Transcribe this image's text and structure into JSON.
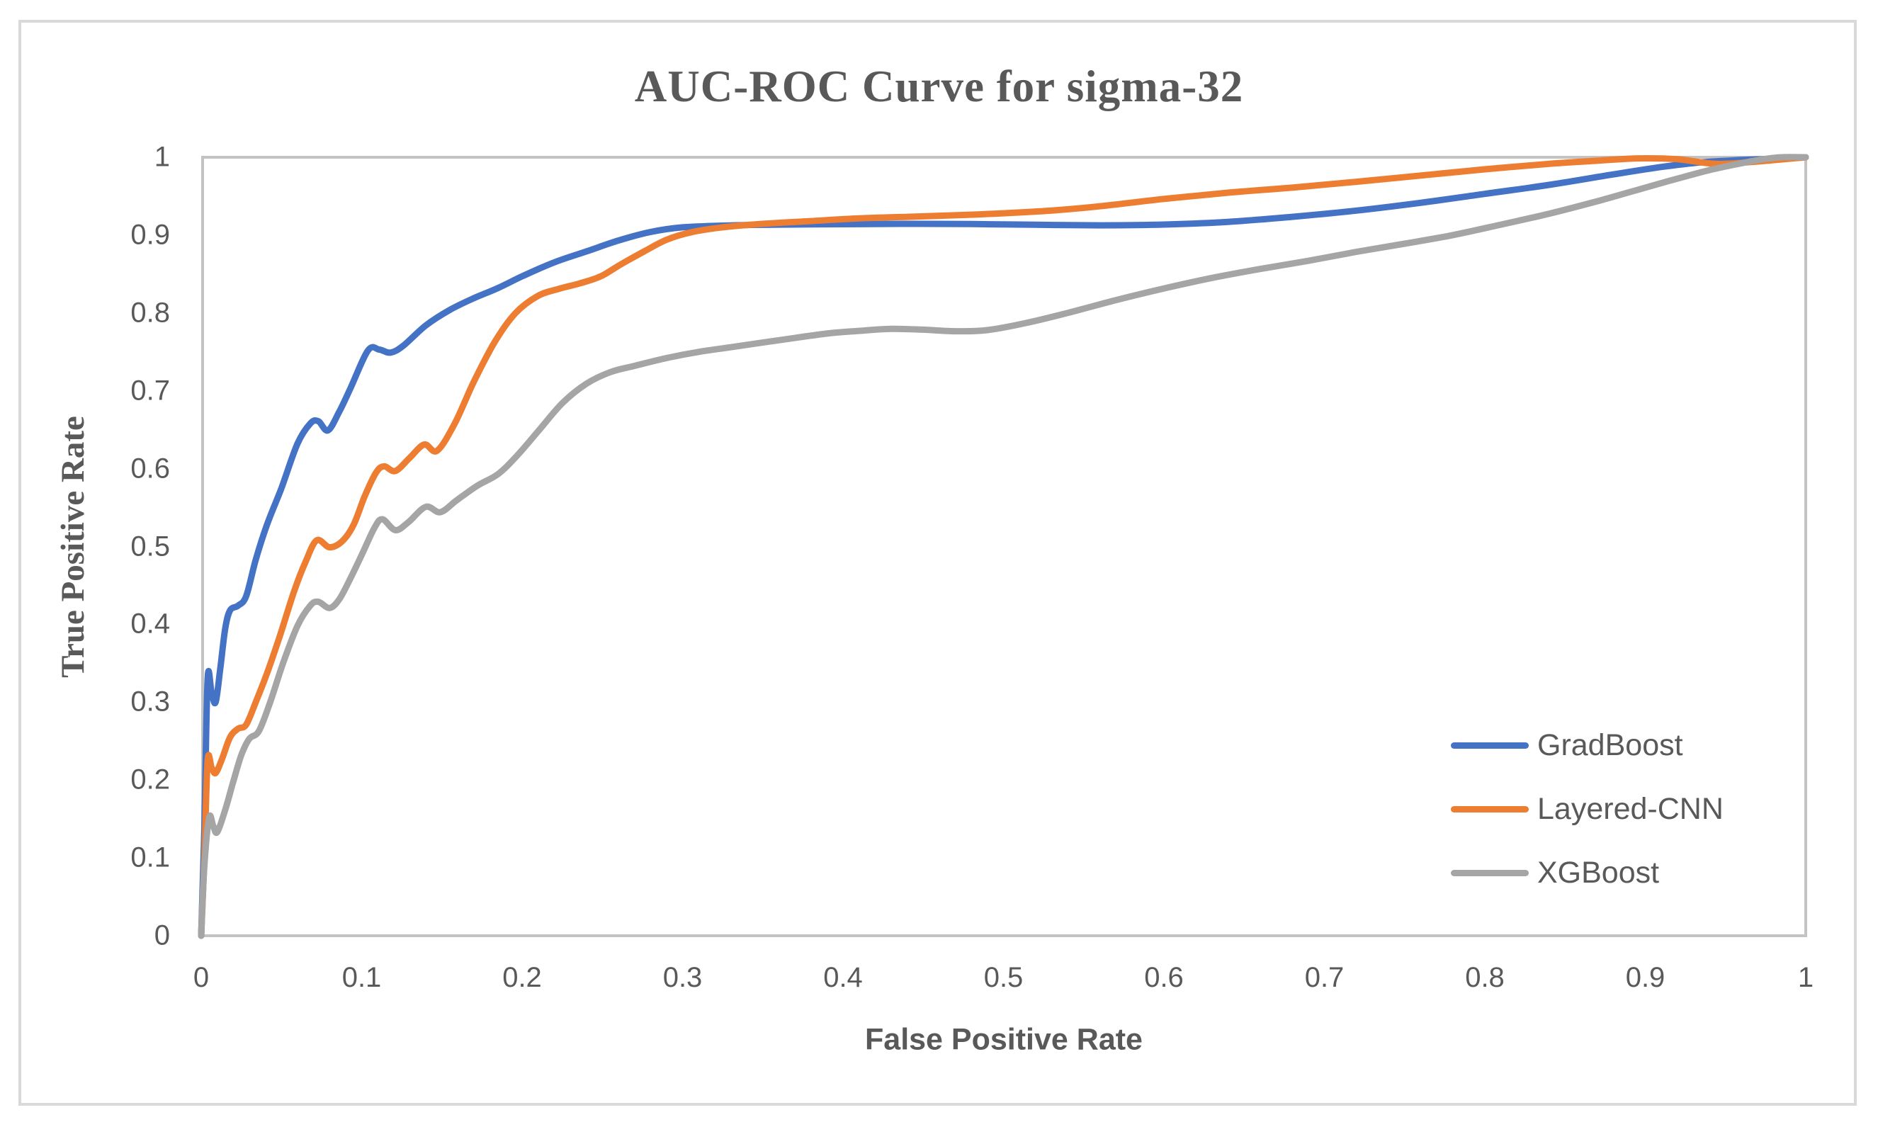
{
  "title": "AUC-ROC Curve for sigma-32",
  "axes": {
    "x_title": "False Positive Rate",
    "y_title": "True Positive Rate"
  },
  "legend": {
    "items": [
      {
        "label": "GradBoost",
        "color": "#4472c4"
      },
      {
        "label": "Layered-CNN",
        "color": "#ed7d31"
      },
      {
        "label": "XGBoost",
        "color": "#a5a5a5"
      }
    ]
  },
  "colors": {
    "text": "#595959",
    "axis_border": "#c3c3c3",
    "outer_frame": "#d9d9d9",
    "background": "#ffffff"
  },
  "chart_data": {
    "type": "line",
    "title": "AUC-ROC Curve for sigma-32",
    "xlabel": "False Positive Rate",
    "ylabel": "True Positive Rate",
    "xlim": [
      0,
      1
    ],
    "ylim": [
      0,
      1
    ],
    "grid": false,
    "legend_position": "inside-right",
    "x_ticks": [
      "0",
      "0.1",
      "0.2",
      "0.3",
      "0.4",
      "0.5",
      "0.6",
      "0.7",
      "0.8",
      "0.9",
      "1"
    ],
    "y_ticks": [
      "0",
      "0.1",
      "0.2",
      "0.3",
      "0.4",
      "0.5",
      "0.6",
      "0.7",
      "0.8",
      "0.9",
      "1"
    ],
    "series": [
      {
        "name": "GradBoost",
        "color": "#4472c4",
        "points": [
          [
            0,
            0
          ],
          [
            0.002,
            0.14
          ],
          [
            0.004,
            0.33
          ],
          [
            0.0065,
            0.312
          ],
          [
            0.009,
            0.3
          ],
          [
            0.012,
            0.345
          ],
          [
            0.015,
            0.395
          ],
          [
            0.018,
            0.418
          ],
          [
            0.023,
            0.424
          ],
          [
            0.028,
            0.436
          ],
          [
            0.034,
            0.483
          ],
          [
            0.041,
            0.528
          ],
          [
            0.05,
            0.575
          ],
          [
            0.06,
            0.632
          ],
          [
            0.068,
            0.658
          ],
          [
            0.073,
            0.661
          ],
          [
            0.079,
            0.649
          ],
          [
            0.086,
            0.673
          ],
          [
            0.093,
            0.703
          ],
          [
            0.104,
            0.752
          ],
          [
            0.111,
            0.753
          ],
          [
            0.118,
            0.749
          ],
          [
            0.126,
            0.758
          ],
          [
            0.14,
            0.784
          ],
          [
            0.155,
            0.804
          ],
          [
            0.17,
            0.819
          ],
          [
            0.185,
            0.832
          ],
          [
            0.2,
            0.847
          ],
          [
            0.22,
            0.865
          ],
          [
            0.24,
            0.879
          ],
          [
            0.26,
            0.893
          ],
          [
            0.28,
            0.904
          ],
          [
            0.3,
            0.91
          ],
          [
            0.33,
            0.9125
          ],
          [
            0.36,
            0.9135
          ],
          [
            0.4,
            0.914
          ],
          [
            0.44,
            0.9145
          ],
          [
            0.48,
            0.9142
          ],
          [
            0.52,
            0.9133
          ],
          [
            0.56,
            0.9126
          ],
          [
            0.6,
            0.9136
          ],
          [
            0.64,
            0.917
          ],
          [
            0.68,
            0.9235
          ],
          [
            0.72,
            0.9315
          ],
          [
            0.76,
            0.9415
          ],
          [
            0.8,
            0.953
          ],
          [
            0.84,
            0.9645
          ],
          [
            0.88,
            0.978
          ],
          [
            0.91,
            0.9875
          ],
          [
            0.935,
            0.9935
          ],
          [
            0.96,
            0.9965
          ],
          [
            0.98,
            0.998
          ],
          [
            1,
            1
          ]
        ]
      },
      {
        "name": "Layered-CNN",
        "color": "#ed7d31",
        "points": [
          [
            0,
            0
          ],
          [
            0.002,
            0.1
          ],
          [
            0.004,
            0.225
          ],
          [
            0.0065,
            0.216
          ],
          [
            0.009,
            0.209
          ],
          [
            0.013,
            0.227
          ],
          [
            0.018,
            0.255
          ],
          [
            0.023,
            0.266
          ],
          [
            0.028,
            0.271
          ],
          [
            0.034,
            0.3
          ],
          [
            0.041,
            0.337
          ],
          [
            0.049,
            0.385
          ],
          [
            0.058,
            0.443
          ],
          [
            0.065,
            0.48
          ],
          [
            0.072,
            0.508
          ],
          [
            0.08,
            0.499
          ],
          [
            0.088,
            0.507
          ],
          [
            0.095,
            0.528
          ],
          [
            0.102,
            0.565
          ],
          [
            0.109,
            0.595
          ],
          [
            0.114,
            0.603
          ],
          [
            0.121,
            0.597
          ],
          [
            0.13,
            0.614
          ],
          [
            0.139,
            0.631
          ],
          [
            0.147,
            0.623
          ],
          [
            0.158,
            0.658
          ],
          [
            0.17,
            0.712
          ],
          [
            0.183,
            0.763
          ],
          [
            0.196,
            0.8
          ],
          [
            0.21,
            0.822
          ],
          [
            0.223,
            0.831
          ],
          [
            0.236,
            0.838
          ],
          [
            0.249,
            0.847
          ],
          [
            0.262,
            0.863
          ],
          [
            0.276,
            0.879
          ],
          [
            0.29,
            0.894
          ],
          [
            0.305,
            0.9035
          ],
          [
            0.325,
            0.91
          ],
          [
            0.35,
            0.9145
          ],
          [
            0.38,
            0.918
          ],
          [
            0.41,
            0.9215
          ],
          [
            0.44,
            0.9235
          ],
          [
            0.47,
            0.9255
          ],
          [
            0.5,
            0.928
          ],
          [
            0.53,
            0.9315
          ],
          [
            0.56,
            0.937
          ],
          [
            0.6,
            0.9465
          ],
          [
            0.64,
            0.9545
          ],
          [
            0.68,
            0.961
          ],
          [
            0.72,
            0.9685
          ],
          [
            0.76,
            0.9765
          ],
          [
            0.8,
            0.9845
          ],
          [
            0.84,
            0.9915
          ],
          [
            0.87,
            0.9955
          ],
          [
            0.895,
            0.9985
          ],
          [
            0.92,
            0.9975
          ],
          [
            0.944,
            0.9915
          ],
          [
            0.97,
            0.9945
          ],
          [
            1,
            1
          ]
        ]
      },
      {
        "name": "XGBoost",
        "color": "#a5a5a5",
        "points": [
          [
            0,
            0
          ],
          [
            0.002,
            0.09
          ],
          [
            0.005,
            0.152
          ],
          [
            0.0075,
            0.141
          ],
          [
            0.01,
            0.133
          ],
          [
            0.015,
            0.162
          ],
          [
            0.02,
            0.198
          ],
          [
            0.025,
            0.232
          ],
          [
            0.03,
            0.253
          ],
          [
            0.036,
            0.263
          ],
          [
            0.043,
            0.3
          ],
          [
            0.051,
            0.35
          ],
          [
            0.06,
            0.398
          ],
          [
            0.068,
            0.424
          ],
          [
            0.073,
            0.429
          ],
          [
            0.08,
            0.421
          ],
          [
            0.086,
            0.432
          ],
          [
            0.093,
            0.459
          ],
          [
            0.1,
            0.489
          ],
          [
            0.108,
            0.524
          ],
          [
            0.113,
            0.535
          ],
          [
            0.121,
            0.521
          ],
          [
            0.129,
            0.531
          ],
          [
            0.14,
            0.551
          ],
          [
            0.149,
            0.544
          ],
          [
            0.159,
            0.559
          ],
          [
            0.172,
            0.578
          ],
          [
            0.185,
            0.593
          ],
          [
            0.197,
            0.617
          ],
          [
            0.21,
            0.648
          ],
          [
            0.225,
            0.684
          ],
          [
            0.24,
            0.709
          ],
          [
            0.255,
            0.724
          ],
          [
            0.27,
            0.732
          ],
          [
            0.29,
            0.742
          ],
          [
            0.31,
            0.75
          ],
          [
            0.33,
            0.756
          ],
          [
            0.36,
            0.765
          ],
          [
            0.39,
            0.7735
          ],
          [
            0.41,
            0.777
          ],
          [
            0.43,
            0.7795
          ],
          [
            0.45,
            0.7785
          ],
          [
            0.47,
            0.7765
          ],
          [
            0.49,
            0.778
          ],
          [
            0.515,
            0.7875
          ],
          [
            0.54,
            0.8
          ],
          [
            0.57,
            0.8165
          ],
          [
            0.6,
            0.8315
          ],
          [
            0.63,
            0.845
          ],
          [
            0.66,
            0.8565
          ],
          [
            0.69,
            0.867
          ],
          [
            0.72,
            0.8785
          ],
          [
            0.75,
            0.889
          ],
          [
            0.78,
            0.9
          ],
          [
            0.81,
            0.9135
          ],
          [
            0.84,
            0.9275
          ],
          [
            0.87,
            0.9435
          ],
          [
            0.9,
            0.961
          ],
          [
            0.92,
            0.9725
          ],
          [
            0.94,
            0.9835
          ],
          [
            0.958,
            0.9915
          ],
          [
            0.972,
            0.997
          ],
          [
            0.985,
            1.0
          ],
          [
            1,
            1
          ]
        ]
      }
    ]
  }
}
